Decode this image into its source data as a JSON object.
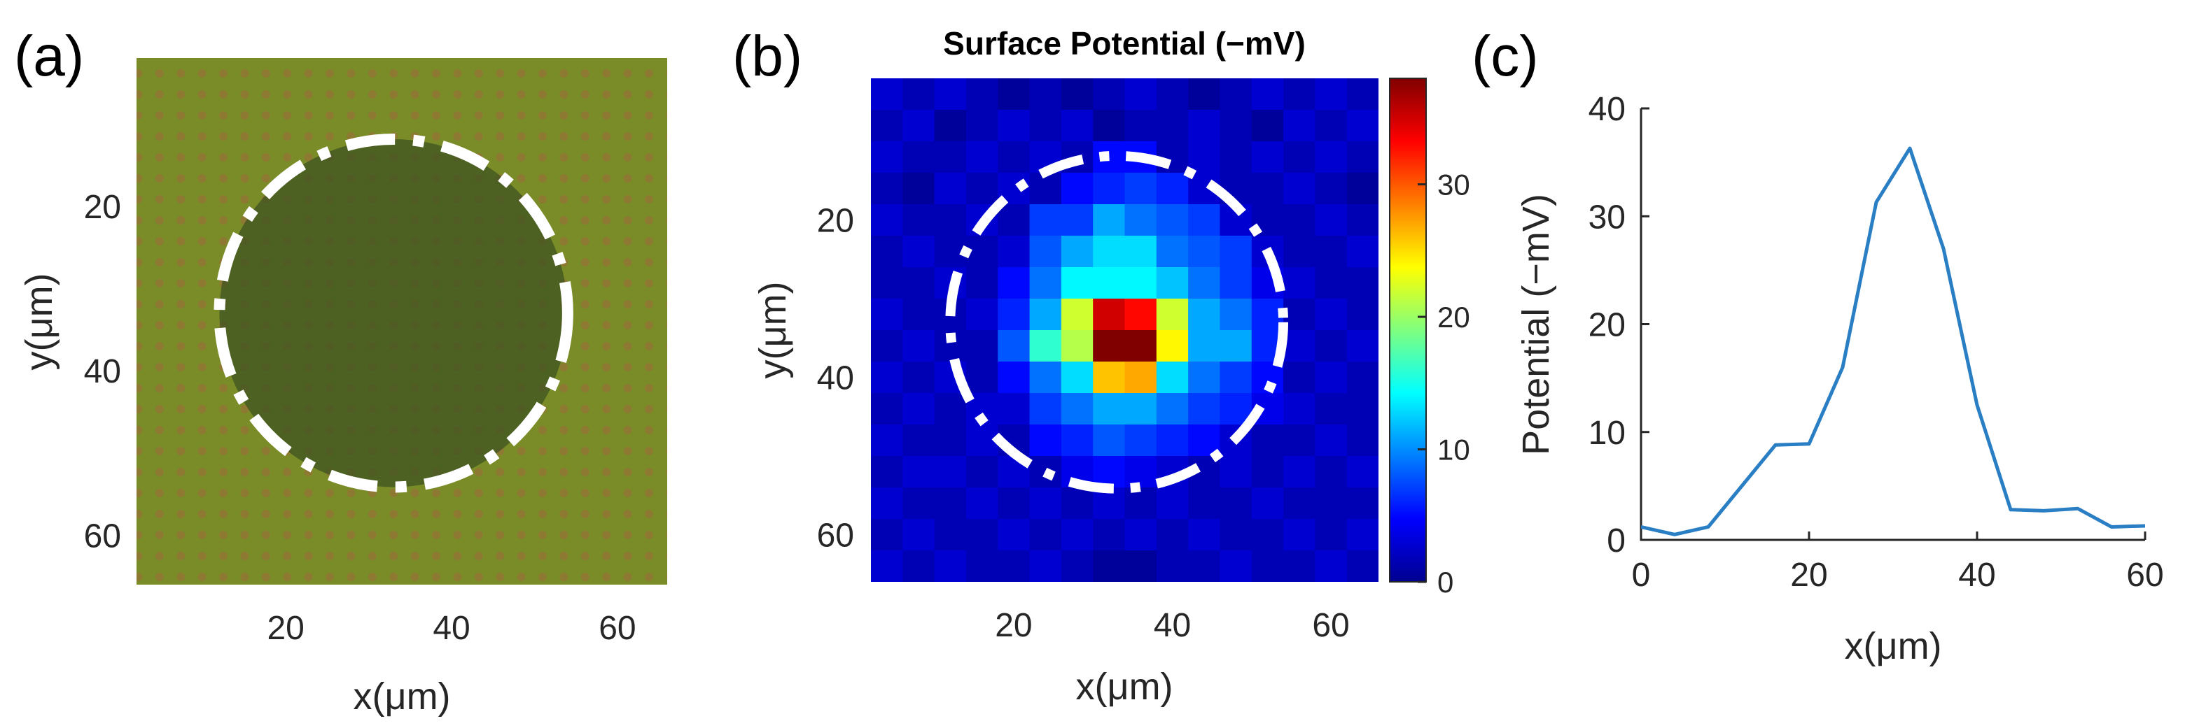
{
  "chart_data": [
    {
      "panel": "(a)",
      "type": "heatmap",
      "title": "",
      "xlabel": "x(μm)",
      "ylabel": "y(μm)",
      "xlim": [
        2,
        66
      ],
      "ylim": [
        2,
        66
      ],
      "xticks": [
        "20",
        "40",
        "60"
      ],
      "yticks": [
        "20",
        "40",
        "60"
      ],
      "xtick_values": [
        20,
        40,
        60
      ],
      "ytick_values": [
        20,
        40,
        60
      ],
      "circle": {
        "cx": 33,
        "cy": 33,
        "r": 21
      },
      "description_colors": {
        "background": "#7a8c28",
        "dot": "#9c6a3a",
        "circle_fill": "#3a5020"
      }
    },
    {
      "panel": "(b)",
      "type": "heatmap",
      "title": "Surface Potential (−mV)",
      "xlabel": "x(μm)",
      "ylabel": "y(μm)",
      "xlim": [
        2,
        66
      ],
      "ylim": [
        2,
        66
      ],
      "xticks": [
        "20",
        "40",
        "60"
      ],
      "yticks": [
        "20",
        "40",
        "60"
      ],
      "xtick_values": [
        20,
        40,
        60
      ],
      "ytick_values": [
        20,
        40,
        60
      ],
      "colorbar_ticks": [
        "0",
        "10",
        "20",
        "30"
      ],
      "colorbar_tick_values": [
        0,
        10,
        20,
        30
      ],
      "colorbar_range": [
        0,
        38
      ],
      "circle": {
        "cx": 33,
        "cy": 33,
        "r": 21
      },
      "grid_rows": 16,
      "grid_cols": 16,
      "values": [
        [
          3,
          2,
          3,
          2,
          1,
          2,
          1,
          2,
          3,
          2,
          1,
          2,
          3,
          2,
          3,
          2
        ],
        [
          2,
          3,
          1,
          2,
          3,
          2,
          3,
          1,
          2,
          2,
          3,
          2,
          1,
          3,
          2,
          3
        ],
        [
          3,
          2,
          2,
          3,
          2,
          3,
          2,
          5,
          5,
          2,
          3,
          2,
          3,
          2,
          3,
          2
        ],
        [
          2,
          1,
          3,
          2,
          3,
          2,
          5,
          6,
          7,
          6,
          3,
          2,
          2,
          3,
          2,
          1
        ],
        [
          3,
          2,
          2,
          3,
          2,
          7,
          7,
          11,
          9,
          8,
          7,
          3,
          2,
          2,
          3,
          2
        ],
        [
          2,
          3,
          2,
          2,
          3,
          8,
          11,
          13,
          13,
          9,
          8,
          7,
          3,
          2,
          2,
          3
        ],
        [
          2,
          2,
          3,
          2,
          5,
          9,
          14,
          14,
          14,
          12,
          9,
          7,
          4,
          3,
          2,
          2
        ],
        [
          3,
          2,
          2,
          3,
          6,
          11,
          22,
          35,
          33,
          22,
          11,
          9,
          6,
          2,
          3,
          2
        ],
        [
          2,
          3,
          2,
          2,
          8,
          16,
          21,
          38,
          38,
          24,
          11,
          11,
          6,
          3,
          2,
          3
        ],
        [
          3,
          2,
          3,
          2,
          5,
          9,
          13,
          26,
          27,
          13,
          9,
          7,
          5,
          2,
          3,
          2
        ],
        [
          2,
          3,
          2,
          3,
          3,
          7,
          9,
          11,
          11,
          9,
          7,
          6,
          4,
          3,
          2,
          2
        ],
        [
          3,
          2,
          2,
          3,
          2,
          5,
          6,
          8,
          7,
          6,
          5,
          3,
          2,
          2,
          3,
          2
        ],
        [
          2,
          3,
          3,
          2,
          3,
          2,
          4,
          5,
          4,
          3,
          2,
          3,
          2,
          3,
          2,
          3
        ],
        [
          3,
          2,
          2,
          3,
          2,
          3,
          2,
          3,
          2,
          3,
          2,
          2,
          3,
          2,
          2,
          2
        ],
        [
          2,
          3,
          2,
          2,
          3,
          2,
          3,
          2,
          3,
          2,
          3,
          2,
          2,
          3,
          2,
          3
        ],
        [
          3,
          2,
          3,
          2,
          2,
          3,
          2,
          1,
          1,
          2,
          2,
          3,
          2,
          2,
          3,
          2
        ]
      ]
    },
    {
      "panel": "(c)",
      "type": "line",
      "title": "",
      "xlabel": "x(μm)",
      "ylabel": "Potential (−mV)",
      "xlim": [
        0,
        60
      ],
      "ylim": [
        0,
        40
      ],
      "xticks": [
        "0",
        "20",
        "40",
        "60"
      ],
      "yticks": [
        "0",
        "10",
        "20",
        "30",
        "40"
      ],
      "xtick_values": [
        0,
        20,
        40,
        60
      ],
      "ytick_values": [
        0,
        10,
        20,
        30,
        40
      ],
      "series": [
        {
          "name": "Potential",
          "color": "#2a7ec4",
          "x": [
            0,
            4,
            8,
            12,
            16,
            20,
            24,
            28,
            32,
            36,
            40,
            44,
            48,
            52,
            56,
            60
          ],
          "y": [
            1.2,
            0.5,
            1.2,
            5.0,
            8.8,
            8.9,
            16.0,
            31.3,
            36.3,
            27.0,
            12.5,
            2.8,
            2.7,
            2.9,
            1.2,
            1.3
          ]
        }
      ]
    }
  ]
}
